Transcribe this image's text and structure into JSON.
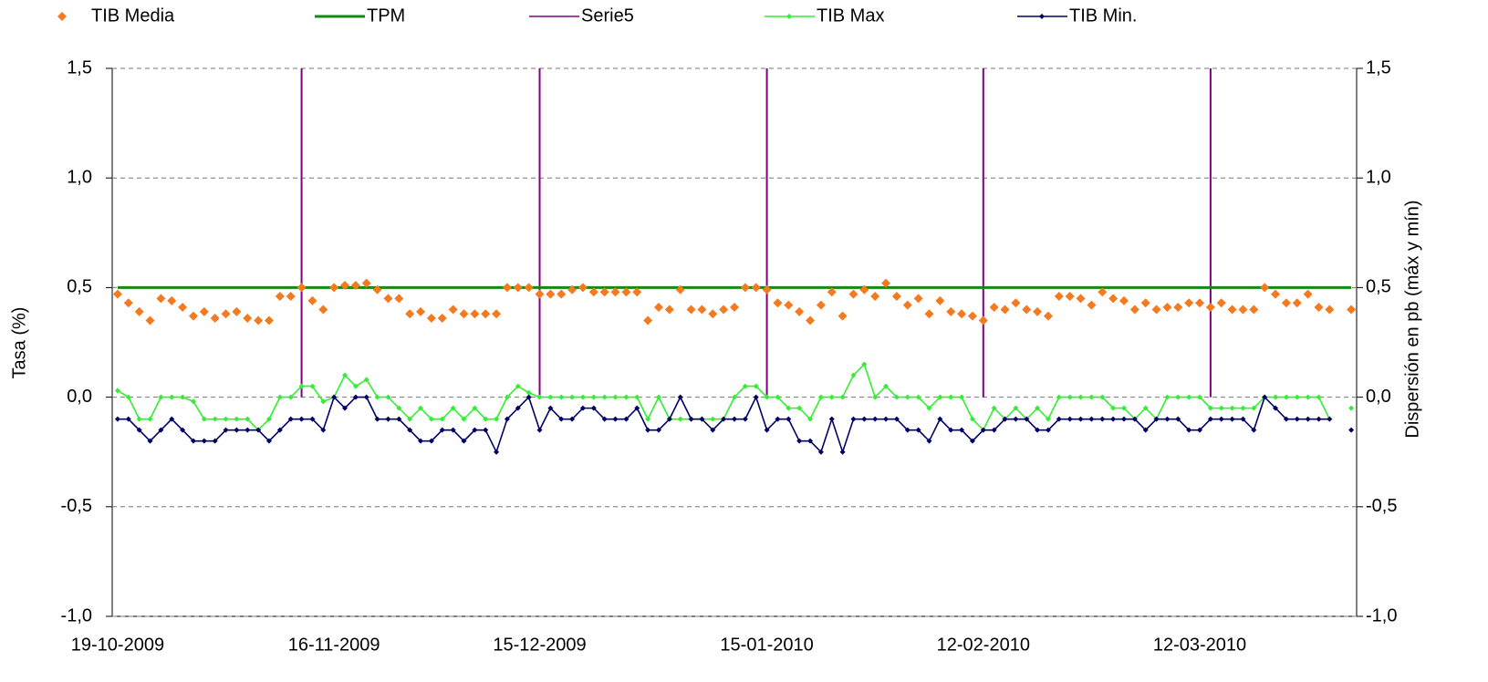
{
  "chart_data": {
    "type": "line",
    "y_label": "Tasa (%)",
    "y2_label": "Dispersión en pb (máx y mín)",
    "categories": [
      "19-10-2009",
      null,
      null,
      null,
      null,
      null,
      null,
      null,
      null,
      null,
      null,
      null,
      null,
      null,
      null,
      null,
      null,
      null,
      null,
      null,
      "16-11-2009",
      null,
      null,
      null,
      null,
      null,
      null,
      null,
      null,
      null,
      null,
      null,
      null,
      null,
      null,
      null,
      null,
      null,
      null,
      "15-12-2009",
      null,
      null,
      null,
      null,
      null,
      null,
      null,
      null,
      null,
      null,
      null,
      null,
      null,
      null,
      null,
      null,
      null,
      null,
      null,
      null,
      "15-01-2010",
      null,
      null,
      null,
      null,
      null,
      null,
      null,
      null,
      null,
      null,
      null,
      null,
      null,
      null,
      null,
      null,
      null,
      null,
      null,
      "12-02-2010",
      null,
      null,
      null,
      null,
      null,
      null,
      null,
      null,
      null,
      null,
      null,
      null,
      null,
      null,
      null,
      null,
      null,
      null,
      null,
      "12-03-2010",
      null,
      null,
      null,
      null,
      null,
      null,
      null,
      null,
      null,
      null,
      null,
      null,
      null,
      null
    ],
    "ylim": [
      -1.0,
      1.5
    ],
    "yticks": [
      {
        "value": -1.0,
        "label": "-1,0"
      },
      {
        "value": -0.5,
        "label": "-0,5"
      },
      {
        "value": 0,
        "label": "0,0"
      },
      {
        "value": 0.5,
        "label": "0,5"
      },
      {
        "value": 1.0,
        "label": "1,0"
      },
      {
        "value": 1.5,
        "label": "1,5"
      }
    ],
    "y2lim": [
      -1.0,
      1.5
    ],
    "y2ticks": [
      {
        "value": -1.0,
        "label": "-1,0"
      },
      {
        "value": -0.5,
        "label": "-0,5"
      },
      {
        "value": 0,
        "label": "0,0"
      },
      {
        "value": 0.5,
        "label": "0,5"
      },
      {
        "value": 1.0,
        "label": "1,0"
      },
      {
        "value": 1.5,
        "label": "1,5"
      }
    ],
    "grid": true,
    "legend": "top",
    "series": [
      {
        "name": "TIB Media",
        "color": "#f47a20",
        "mark": "diamond",
        "values": [
          0.47,
          0.43,
          0.39,
          0.35,
          0.45,
          0.44,
          0.41,
          0.37,
          0.39,
          0.36,
          0.38,
          0.39,
          0.36,
          0.35,
          0.35,
          0.46,
          0.46,
          0.5,
          0.44,
          0.4,
          0.5,
          0.51,
          0.51,
          0.52,
          0.49,
          0.45,
          0.45,
          0.38,
          0.39,
          0.36,
          0.36,
          0.4,
          0.38,
          0.38,
          0.38,
          0.38,
          0.5,
          0.5,
          0.5,
          0.47,
          0.47,
          0.47,
          0.49,
          0.5,
          0.48,
          0.48,
          0.48,
          0.48,
          0.48,
          0.35,
          0.41,
          0.4,
          0.49,
          0.4,
          0.4,
          0.38,
          0.4,
          0.41,
          0.5,
          0.5,
          0.49,
          0.43,
          0.42,
          0.39,
          0.35,
          0.42,
          0.48,
          0.37,
          0.47,
          0.49,
          0.46,
          0.52,
          0.46,
          0.42,
          0.45,
          0.38,
          0.44,
          0.39,
          0.38,
          0.37,
          0.35,
          0.41,
          0.4,
          0.43,
          0.4,
          0.39,
          0.37,
          0.46,
          0.46,
          0.45,
          0.42,
          0.48,
          0.45,
          0.44,
          0.4,
          0.43,
          0.4,
          0.41,
          0.41,
          0.43,
          0.43,
          0.41,
          0.43,
          0.4,
          0.4,
          0.4,
          0.5,
          0.47,
          0.43,
          0.43,
          0.47,
          0.41,
          0.4,
          null,
          0.4
        ]
      },
      {
        "name": "TPM",
        "color": "#138a13",
        "mark": "line",
        "values": [
          0.5,
          0.5,
          0.5,
          0.5,
          0.5,
          0.5,
          0.5,
          0.5,
          0.5,
          0.5,
          0.5,
          0.5,
          0.5,
          0.5,
          0.5,
          0.5,
          0.5,
          0.5,
          0.5,
          0.5,
          0.5,
          0.5,
          0.5,
          0.5,
          0.5,
          0.5,
          0.5,
          0.5,
          0.5,
          0.5,
          0.5,
          0.5,
          0.5,
          0.5,
          0.5,
          0.5,
          0.5,
          0.5,
          0.5,
          0.5,
          0.5,
          0.5,
          0.5,
          0.5,
          0.5,
          0.5,
          0.5,
          0.5,
          0.5,
          0.5,
          0.5,
          0.5,
          0.5,
          0.5,
          0.5,
          0.5,
          0.5,
          0.5,
          0.5,
          0.5,
          0.5,
          0.5,
          0.5,
          0.5,
          0.5,
          0.5,
          0.5,
          0.5,
          0.5,
          0.5,
          0.5,
          0.5,
          0.5,
          0.5,
          0.5,
          0.5,
          0.5,
          0.5,
          0.5,
          0.5,
          0.5,
          0.5,
          0.5,
          0.5,
          0.5,
          0.5,
          0.5,
          0.5,
          0.5,
          0.5,
          0.5,
          0.5,
          0.5,
          0.5,
          0.5,
          0.5,
          0.5,
          0.5,
          0.5,
          0.5,
          0.5,
          0.5,
          0.5,
          0.5,
          0.5,
          0.5,
          0.5,
          0.5,
          0.5,
          0.5,
          0.5,
          0.5,
          0.5,
          0.5,
          0.5
        ]
      },
      {
        "name": "Serie5",
        "color": "#800080",
        "mark": "drop",
        "axis": "y2",
        "values": [
          null,
          null,
          null,
          null,
          null,
          null,
          null,
          null,
          null,
          null,
          null,
          null,
          null,
          null,
          null,
          null,
          null,
          1.5,
          null,
          null,
          null,
          null,
          null,
          null,
          null,
          null,
          null,
          null,
          null,
          null,
          null,
          null,
          null,
          null,
          null,
          null,
          null,
          null,
          null,
          1.5,
          null,
          null,
          null,
          null,
          null,
          null,
          null,
          null,
          null,
          null,
          null,
          null,
          null,
          null,
          null,
          null,
          null,
          null,
          null,
          null,
          1.5,
          null,
          null,
          null,
          null,
          null,
          null,
          null,
          null,
          null,
          null,
          null,
          null,
          null,
          null,
          null,
          null,
          null,
          null,
          null,
          1.5,
          null,
          null,
          null,
          null,
          null,
          null,
          null,
          null,
          null,
          null,
          null,
          null,
          null,
          null,
          null,
          null,
          null,
          null,
          null,
          null,
          1.5,
          null,
          null,
          null,
          null,
          null,
          null,
          null,
          null,
          null,
          null,
          null,
          null,
          null
        ]
      },
      {
        "name": "TIB Max",
        "color": "#33ee33",
        "mark": "line-diamond",
        "axis": "y2",
        "values": [
          0.03,
          0,
          -0.1,
          -0.1,
          0,
          0,
          0,
          -0.02,
          -0.1,
          -0.1,
          -0.1,
          -0.1,
          -0.1,
          -0.15,
          -0.1,
          0,
          0,
          0.05,
          0.05,
          -0.02,
          0,
          0.1,
          0.05,
          0.08,
          0,
          0,
          -0.05,
          -0.1,
          -0.05,
          -0.1,
          -0.1,
          -0.05,
          -0.1,
          -0.05,
          -0.1,
          -0.1,
          0,
          0.05,
          0.02,
          0,
          0,
          0,
          0,
          0,
          0,
          0,
          0,
          0,
          0,
          -0.1,
          0,
          -0.1,
          -0.1,
          -0.1,
          -0.1,
          -0.1,
          -0.1,
          0,
          0.05,
          0.05,
          0,
          0,
          -0.05,
          -0.05,
          -0.1,
          0,
          0,
          0,
          0.1,
          0.15,
          0,
          0.05,
          0,
          0,
          0,
          -0.05,
          0,
          0,
          0,
          -0.1,
          -0.15,
          -0.05,
          -0.1,
          -0.05,
          -0.1,
          -0.05,
          -0.1,
          0,
          0,
          0,
          0,
          0,
          -0.05,
          -0.05,
          -0.1,
          -0.05,
          -0.1,
          0,
          0,
          0,
          0,
          -0.05,
          -0.05,
          -0.05,
          -0.05,
          -0.05,
          0,
          0,
          0,
          0,
          0,
          0,
          -0.1,
          null,
          -0.05
        ]
      },
      {
        "name": "TIB Min.",
        "color": "#000066",
        "mark": "line-diamond",
        "axis": "y2",
        "values": [
          -0.1,
          -0.1,
          -0.15,
          -0.2,
          -0.15,
          -0.1,
          -0.15,
          -0.2,
          -0.2,
          -0.2,
          -0.15,
          -0.15,
          -0.15,
          -0.15,
          -0.2,
          -0.15,
          -0.1,
          -0.1,
          -0.1,
          -0.15,
          0,
          -0.05,
          0,
          0,
          -0.1,
          -0.1,
          -0.1,
          -0.15,
          -0.2,
          -0.2,
          -0.15,
          -0.15,
          -0.2,
          -0.15,
          -0.15,
          -0.25,
          -0.1,
          -0.05,
          0,
          -0.15,
          -0.05,
          -0.1,
          -0.1,
          -0.05,
          -0.05,
          -0.1,
          -0.1,
          -0.1,
          -0.05,
          -0.15,
          -0.15,
          -0.1,
          0,
          -0.1,
          -0.1,
          -0.15,
          -0.1,
          -0.1,
          -0.1,
          0,
          -0.15,
          -0.1,
          -0.1,
          -0.2,
          -0.2,
          -0.25,
          -0.1,
          -0.25,
          -0.1,
          -0.1,
          -0.1,
          -0.1,
          -0.1,
          -0.15,
          -0.15,
          -0.2,
          -0.1,
          -0.15,
          -0.15,
          -0.2,
          -0.15,
          -0.15,
          -0.1,
          -0.1,
          -0.1,
          -0.15,
          -0.15,
          -0.1,
          -0.1,
          -0.1,
          -0.1,
          -0.1,
          -0.1,
          -0.1,
          -0.1,
          -0.15,
          -0.1,
          -0.1,
          -0.1,
          -0.15,
          -0.15,
          -0.1,
          -0.1,
          -0.1,
          -0.1,
          -0.15,
          0,
          -0.05,
          -0.1,
          -0.1,
          -0.1,
          -0.1,
          -0.1,
          null,
          -0.15
        ]
      }
    ]
  }
}
